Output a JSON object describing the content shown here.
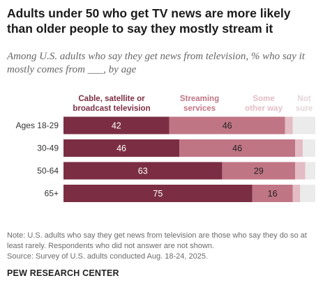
{
  "title": "Adults under 50 who get TV news are more likely than older people to say they mostly stream it",
  "subtitle": "Among U.S. adults who say they get news from television, % who say it mostly comes from ___, by age",
  "footer": {
    "note": "Note: U.S. adults who say they get news from television are those who say they do so at least rarely. Respondents who did not answer are not shown.",
    "source": "Source: Survey of U.S. adults conducted Aug. 18-24, 2025.",
    "org": "PEW RESEARCH CENTER"
  },
  "chart_data": {
    "type": "bar",
    "orientation": "horizontal",
    "stacked": true,
    "categories": [
      "Ages 18-29",
      "30-49",
      "50-64",
      "65+"
    ],
    "series": [
      {
        "name": "Cable, satellite or broadcast television",
        "values": [
          42,
          46,
          63,
          75
        ],
        "color": "#7b2e43",
        "label_color": "#7b2e43",
        "value_color": "#ffffff"
      },
      {
        "name": "Streaming services",
        "values": [
          46,
          46,
          29,
          16
        ],
        "color": "#c07585",
        "label_color": "#c07585",
        "value_color": "#222222"
      },
      {
        "name": "Some other way",
        "values": [
          3,
          3,
          4,
          3
        ],
        "color": "#e3bcc4",
        "label_color": "#e3bcc4",
        "value_color": "#222222"
      },
      {
        "name": "Not sure",
        "values": [
          9,
          5,
          4,
          6
        ],
        "color": "#ebebeb",
        "label_color": "#e4d4d7",
        "value_color": "#222222"
      }
    ],
    "value_labels_shown": [
      [
        true,
        true,
        false,
        false
      ],
      [
        true,
        true,
        false,
        false
      ],
      [
        true,
        true,
        false,
        false
      ],
      [
        true,
        true,
        false,
        false
      ]
    ],
    "xlim": [
      0,
      100
    ],
    "grid": false,
    "legend": "top (labels above each segment)"
  }
}
